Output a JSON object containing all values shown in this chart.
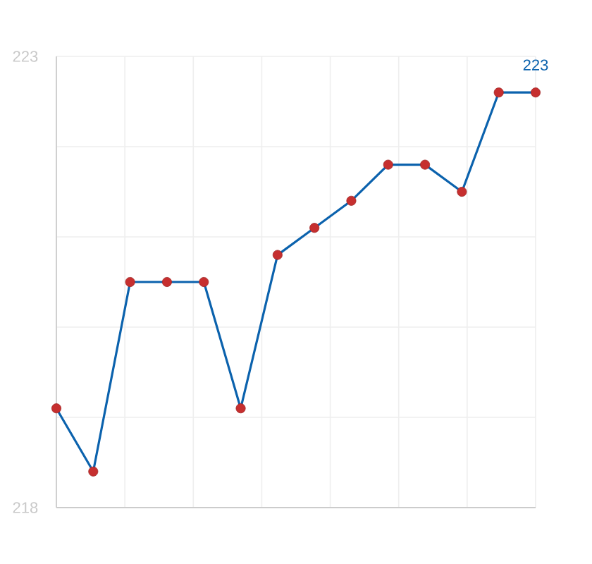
{
  "chart_data": {
    "type": "line",
    "categories": [
      null,
      null,
      null,
      null,
      null,
      null,
      null,
      null,
      null,
      null,
      null,
      null,
      null,
      null
    ],
    "series": [
      {
        "color": "#0b62ad",
        "colors": [
          "#c62f2f",
          "#c62f2f",
          "#c62f2f",
          "#c62f2f",
          "#c62f2f",
          "#c62f2f",
          "#c62f2f",
          "#c62f2f",
          "#c62f2f",
          "#c62f2f",
          "#c62f2f",
          "#c62f2f",
          "#c62f2f",
          "#c62f2f"
        ],
        "values": [
          219.1,
          218.4,
          220.5,
          220.5,
          220.5,
          219.1,
          220.8,
          221.1,
          221.4,
          221.8,
          221.8,
          221.5,
          222.6,
          222.6
        ]
      }
    ],
    "ylim": [
      218,
      223
    ],
    "yticks": [
      218,
      {
        "value": 219,
        "label": null
      },
      {
        "value": 220,
        "label": null
      },
      {
        "value": 221,
        "label": null
      },
      {
        "value": 222,
        "label": null
      },
      223
    ],
    "grid": true,
    "marker": "circle",
    "line_style": "solid",
    "annotations": [
      "223"
    ]
  }
}
